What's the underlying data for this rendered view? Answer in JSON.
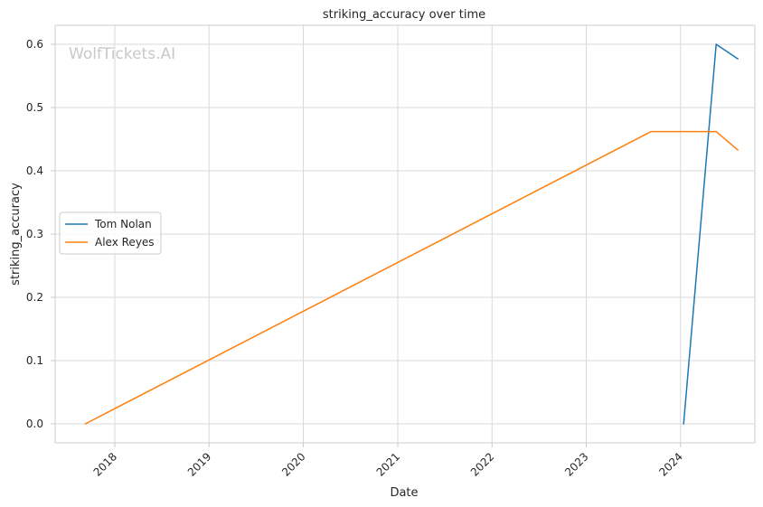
{
  "chart_data": {
    "type": "line",
    "title": "striking_accuracy over time",
    "xlabel": "Date",
    "ylabel": "striking_accuracy",
    "watermark": "WolfTickets.AI",
    "xlim": [
      "2017-05-15",
      "2024-10-15"
    ],
    "ylim": [
      -0.03,
      0.63
    ],
    "x_ticks": [
      {
        "date": "2018-01-01",
        "label": "2018"
      },
      {
        "date": "2019-01-01",
        "label": "2019"
      },
      {
        "date": "2020-01-01",
        "label": "2020"
      },
      {
        "date": "2021-01-01",
        "label": "2021"
      },
      {
        "date": "2022-01-01",
        "label": "2022"
      },
      {
        "date": "2023-01-01",
        "label": "2023"
      },
      {
        "date": "2024-01-01",
        "label": "2024"
      }
    ],
    "y_ticks": [
      0.0,
      0.1,
      0.2,
      0.3,
      0.4,
      0.5,
      0.6
    ],
    "y_tick_labels": [
      "0.0",
      "0.1",
      "0.2",
      "0.3",
      "0.4",
      "0.5",
      "0.6"
    ],
    "grid": true,
    "legend_position": "center-left",
    "series": [
      {
        "name": "Tom Nolan",
        "color": "#1f77b4",
        "points": [
          {
            "x": "2024-01-13",
            "y": 0.0
          },
          {
            "x": "2024-05-18",
            "y": 0.6
          },
          {
            "x": "2024-08-10",
            "y": 0.577
          }
        ]
      },
      {
        "name": "Alex Reyes",
        "color": "#ff7f0e",
        "points": [
          {
            "x": "2017-09-09",
            "y": 0.0
          },
          {
            "x": "2023-09-09",
            "y": 0.462
          },
          {
            "x": "2024-05-18",
            "y": 0.462
          },
          {
            "x": "2024-08-10",
            "y": 0.433
          }
        ]
      }
    ]
  }
}
